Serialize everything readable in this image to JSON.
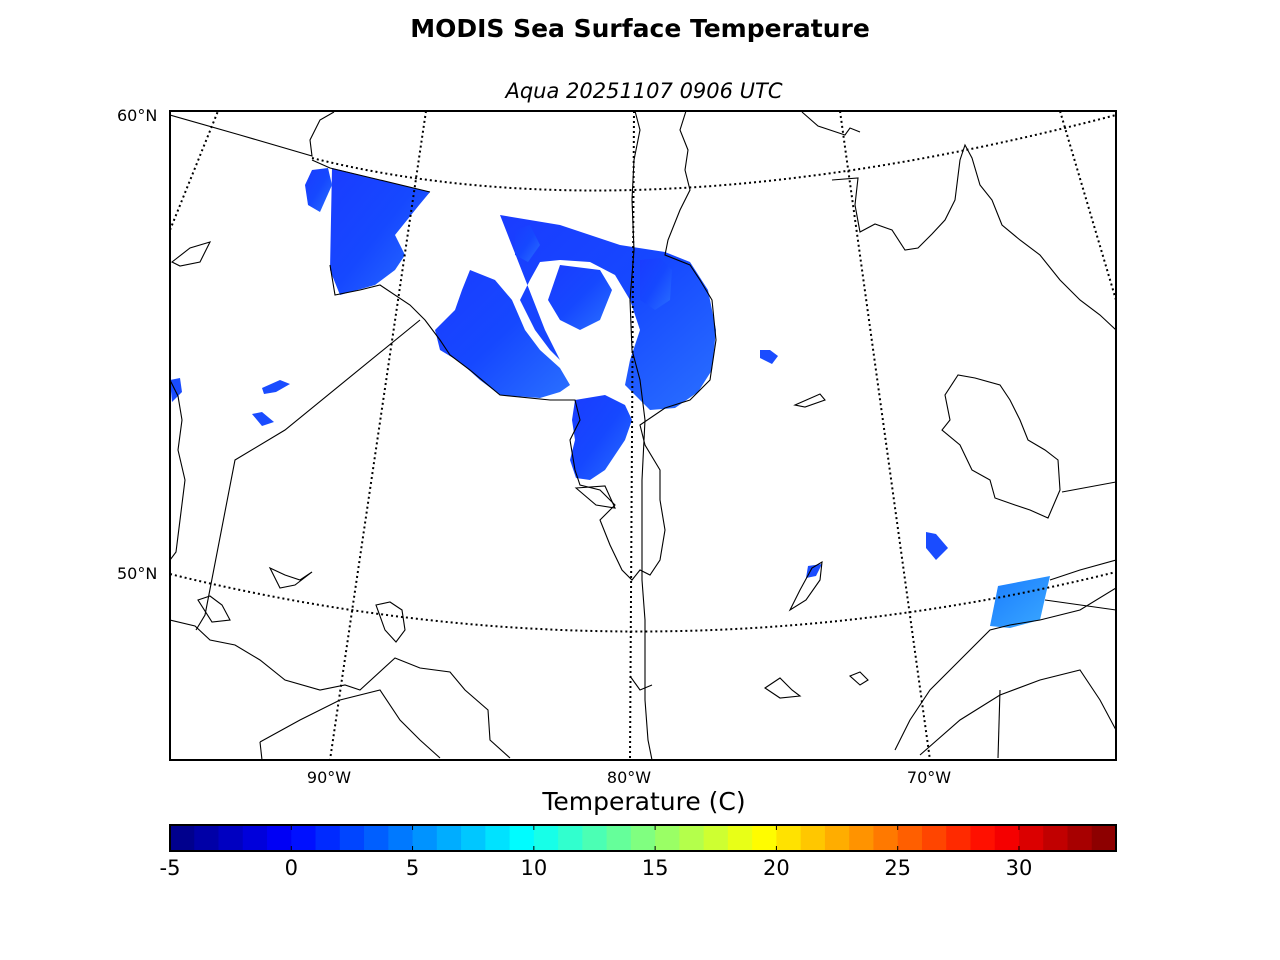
{
  "title": "MODIS Sea Surface Temperature",
  "subtitle": "Aqua 20251107 0906 UTC",
  "map": {
    "projection": "conic (Lambert)",
    "lat_labels": [
      "60°N",
      "50°N"
    ],
    "lon_labels": [
      "90°W",
      "80°W",
      "70°W"
    ],
    "graticule_style": "dotted",
    "land_color": "#ffffff",
    "coastline_color": "#000000",
    "regions_with_data": [
      "Hudson Bay / James Bay",
      "Gulf of St. Lawrence (partial)"
    ]
  },
  "colorbar": {
    "label": "Temperature (C)",
    "ticks": [
      "-5",
      "0",
      "5",
      "10",
      "15",
      "20",
      "25",
      "30"
    ],
    "min": -5,
    "max": 34,
    "colormap": "jet"
  },
  "chart_data": {
    "type": "heatmap",
    "title": "MODIS Sea Surface Temperature",
    "subtitle": "Aqua 20251107 0906 UTC",
    "variable": "Temperature (C)",
    "value_range": [
      -5,
      34
    ],
    "observed_range_estimate": [
      0,
      7
    ],
    "lat_range": [
      45,
      60
    ],
    "lon_range": [
      -95,
      -65
    ]
  }
}
